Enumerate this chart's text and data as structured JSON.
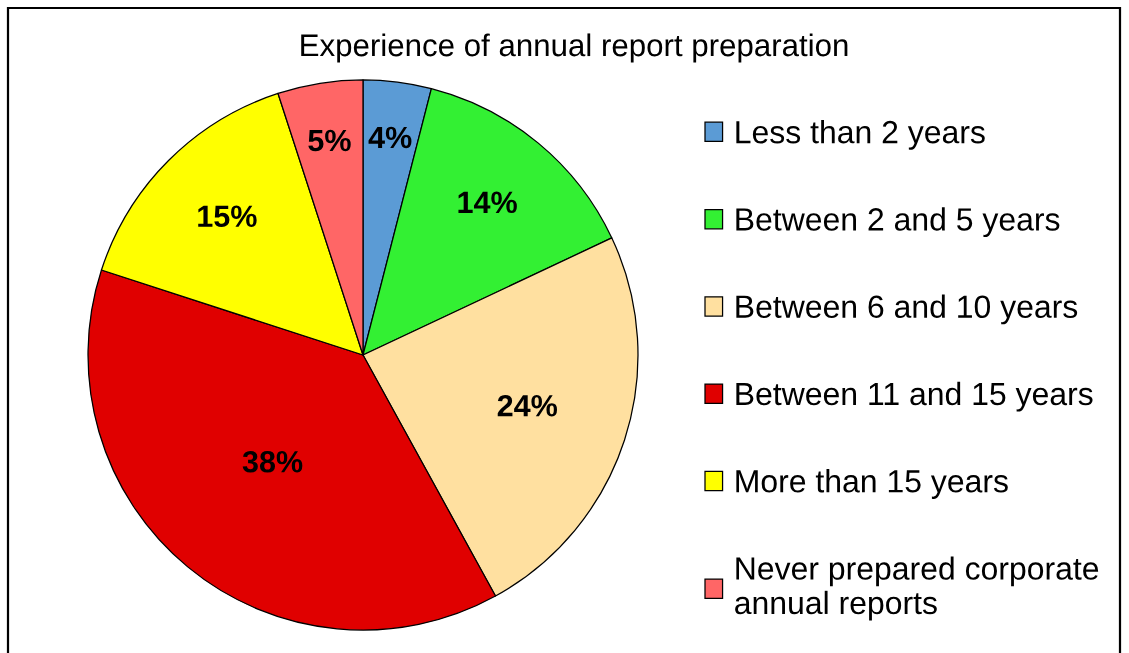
{
  "chart_data": {
    "type": "pie",
    "title": "Experience of annual report preparation",
    "categories": [
      "Less than 2 years",
      "Between 2 and 5 years",
      "Between 6 and 10 years",
      "Between 11 and 15 years",
      "More than 15 years",
      "Never prepared corporate\nannual reports"
    ],
    "values": [
      4,
      14,
      24,
      38,
      15,
      5
    ],
    "value_labels": [
      "4%",
      "14%",
      "24%",
      "38%",
      "15%",
      "5%"
    ],
    "colors": [
      "#5b9bd5",
      "#33f033",
      "#ffe0a0",
      "#e00000",
      "#ffff00",
      "#ff6666"
    ],
    "legend": "right"
  }
}
